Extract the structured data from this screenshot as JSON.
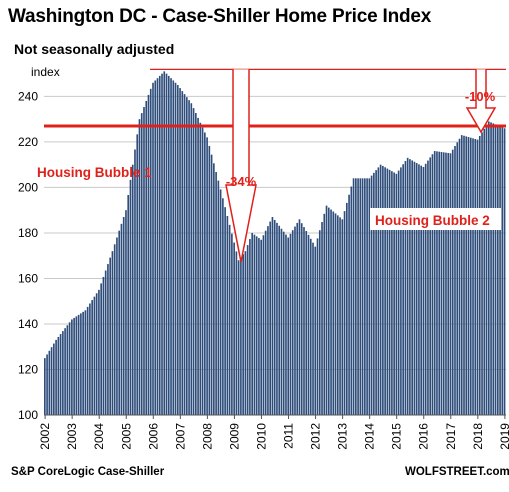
{
  "title": "Washington DC - Case-Shiller Home Price Index",
  "subtitle": "Not seasonally adjusted",
  "source": "S&P CoreLogic Case-Shiller",
  "brand": "WOLFSTREET.com",
  "colors": {
    "bar": "#2e4d7b",
    "accent": "#e0201b"
  },
  "chart_data": {
    "type": "bar",
    "ylabel": "index",
    "ylim": [
      100,
      256
    ],
    "yticks": [
      100,
      120,
      140,
      160,
      180,
      200,
      220,
      240
    ],
    "xticks": [
      "2002",
      "2003",
      "2004",
      "2005",
      "2006",
      "2007",
      "2008",
      "2009",
      "2010",
      "2011",
      "2012",
      "2013",
      "2014",
      "2015",
      "2016",
      "2017",
      "2018",
      "2019"
    ],
    "x_start": "2002-01",
    "x_end": "2019-01",
    "frequency": "monthly",
    "reference_line": 227,
    "keypoints": [
      {
        "x": "2002-01",
        "y": 125
      },
      {
        "x": "2002-06",
        "y": 133
      },
      {
        "x": "2003-01",
        "y": 142
      },
      {
        "x": "2003-07",
        "y": 146
      },
      {
        "x": "2004-01",
        "y": 155
      },
      {
        "x": "2004-07",
        "y": 172
      },
      {
        "x": "2005-01",
        "y": 190
      },
      {
        "x": "2005-07",
        "y": 230
      },
      {
        "x": "2006-01",
        "y": 246
      },
      {
        "x": "2006-06",
        "y": 251
      },
      {
        "x": "2006-12",
        "y": 245
      },
      {
        "x": "2007-06",
        "y": 237
      },
      {
        "x": "2008-01",
        "y": 222
      },
      {
        "x": "2008-06",
        "y": 203
      },
      {
        "x": "2009-03",
        "y": 168
      },
      {
        "x": "2009-06",
        "y": 172
      },
      {
        "x": "2009-09",
        "y": 180
      },
      {
        "x": "2010-01",
        "y": 177
      },
      {
        "x": "2010-06",
        "y": 187
      },
      {
        "x": "2011-01",
        "y": 178
      },
      {
        "x": "2011-06",
        "y": 186
      },
      {
        "x": "2012-01",
        "y": 174
      },
      {
        "x": "2012-06",
        "y": 192
      },
      {
        "x": "2013-01",
        "y": 186
      },
      {
        "x": "2013-06",
        "y": 204
      },
      {
        "x": "2014-01",
        "y": 204
      },
      {
        "x": "2014-06",
        "y": 210
      },
      {
        "x": "2015-01",
        "y": 206
      },
      {
        "x": "2015-06",
        "y": 213
      },
      {
        "x": "2016-01",
        "y": 209
      },
      {
        "x": "2016-06",
        "y": 216
      },
      {
        "x": "2017-01",
        "y": 215
      },
      {
        "x": "2017-06",
        "y": 223
      },
      {
        "x": "2018-01",
        "y": 221
      },
      {
        "x": "2018-06",
        "y": 229
      },
      {
        "x": "2019-01",
        "y": 226
      }
    ],
    "annotations": [
      {
        "text": "Housing Bubble 1",
        "style": "red-text"
      },
      {
        "text": "-34%",
        "style": "arrow-down"
      },
      {
        "text": "-10%",
        "style": "arrow-down"
      },
      {
        "text": "Housing Bubble 2",
        "style": "white-on-blue"
      }
    ]
  }
}
